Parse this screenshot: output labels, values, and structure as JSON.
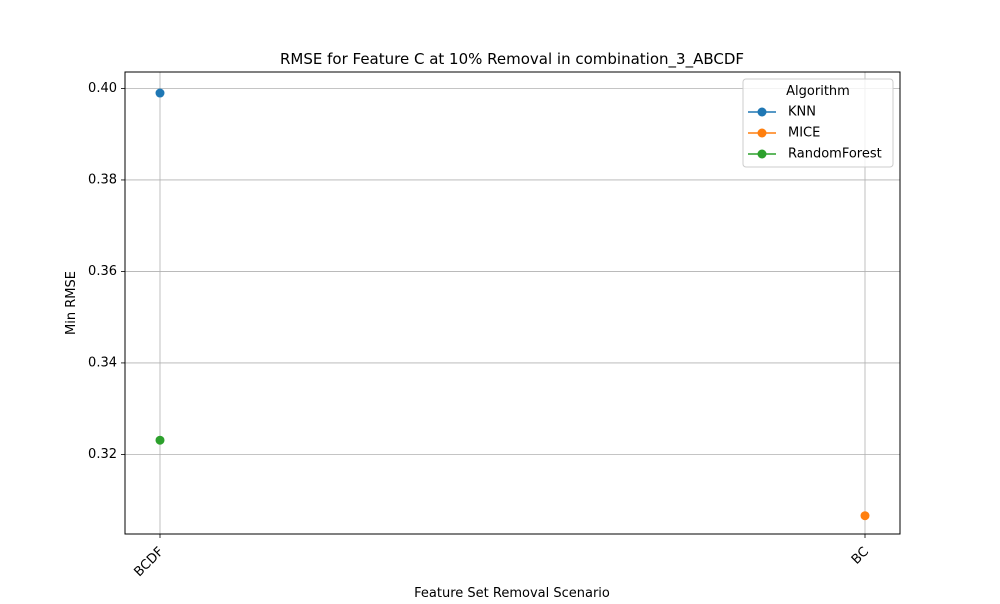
{
  "chart_data": {
    "type": "line",
    "title": "RMSE for Feature C at 10% Removal in combination_3_ABCDF",
    "xlabel": "Feature Set Removal Scenario",
    "ylabel": "Min RMSE",
    "categories": [
      "BCDF",
      "BC"
    ],
    "ylim": [
      0.3026,
      0.4036
    ],
    "yticks": [
      "0.32",
      "0.34",
      "0.36",
      "0.38",
      "0.40"
    ],
    "ytick_values": [
      0.32,
      0.34,
      0.36,
      0.38,
      0.4
    ],
    "grid": true,
    "legend": {
      "title": "Algorithm",
      "placement": "top-right"
    },
    "series": [
      {
        "name": "KNN",
        "color": "#1f77b4",
        "points": [
          {
            "category": "BCDF",
            "value": 0.399
          }
        ]
      },
      {
        "name": "MICE",
        "color": "#ff7f0e",
        "points": [
          {
            "category": "BC",
            "value": 0.3066
          }
        ]
      },
      {
        "name": "RandomForest",
        "color": "#2ca02c",
        "points": [
          {
            "category": "BCDF",
            "value": 0.3231
          }
        ]
      }
    ]
  }
}
